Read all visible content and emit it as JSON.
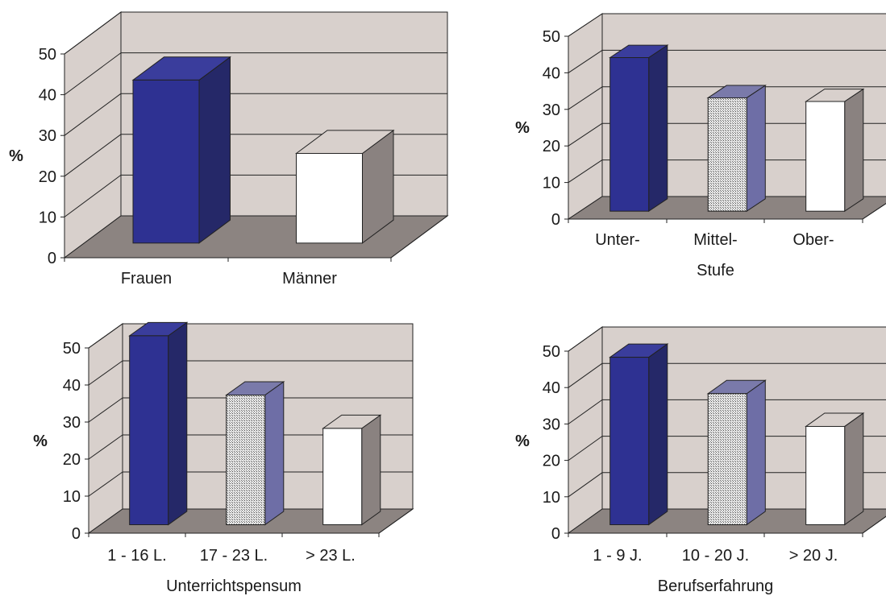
{
  "colors": {
    "wall": "#d8d0cc",
    "floor": "#8c8481",
    "grid": "#222222",
    "blue_front": "#2e3192",
    "blue_side": "#252868",
    "blue_top": "#3a3d9c",
    "white_front": "#ffffff",
    "white_side": "#8a8280",
    "white_top": "#d8d0cc",
    "hatch_front": "#d9d9d9",
    "hatch_side": "#6e6ea6",
    "hatch_top": "#7a7aaa"
  },
  "chart_data": [
    {
      "type": "bar",
      "ylabel": "%",
      "xlabel": "",
      "ylim": [
        0,
        50
      ],
      "yticks": [
        "0",
        "10",
        "20",
        "30",
        "40",
        "50"
      ],
      "categories": [
        "Frauen",
        "Männer"
      ],
      "values": [
        40,
        22
      ],
      "fills": [
        "blue",
        "white"
      ]
    },
    {
      "type": "bar",
      "ylabel": "%",
      "xlabel": "Stufe",
      "ylim": [
        0,
        50
      ],
      "yticks": [
        "0",
        "10",
        "20",
        "30",
        "40",
        "50"
      ],
      "categories": [
        "Unter-",
        "Mittel-",
        "Ober-"
      ],
      "values": [
        42,
        31,
        30
      ],
      "fills": [
        "blue",
        "hatch",
        "white"
      ]
    },
    {
      "type": "bar",
      "ylabel": "%",
      "xlabel": "Unterrichtspensum",
      "ylim": [
        0,
        50
      ],
      "yticks": [
        "0",
        "10",
        "20",
        "30",
        "40",
        "50"
      ],
      "categories": [
        "1 - 16 L.",
        "17 - 23 L.",
        "> 23 L."
      ],
      "values": [
        51,
        35,
        26
      ],
      "fills": [
        "blue",
        "hatch",
        "white"
      ]
    },
    {
      "type": "bar",
      "ylabel": "%",
      "xlabel": "Berufserfahrung",
      "ylim": [
        0,
        50
      ],
      "yticks": [
        "0",
        "10",
        "20",
        "30",
        "40",
        "50"
      ],
      "categories": [
        "1 - 9 J.",
        "10 - 20 J.",
        "> 20 J."
      ],
      "values": [
        46,
        36,
        27
      ],
      "fills": [
        "blue",
        "hatch",
        "white"
      ]
    }
  ]
}
